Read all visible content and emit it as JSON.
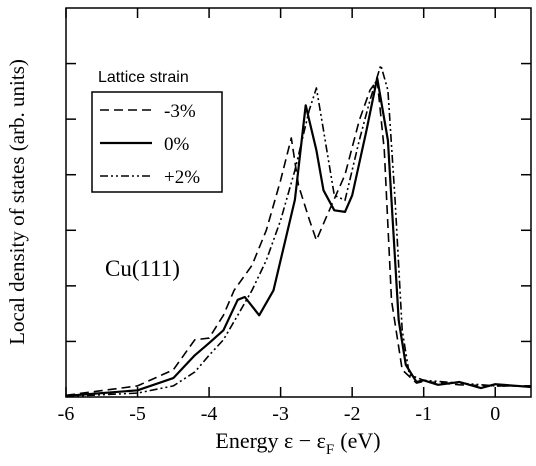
{
  "chart_data": {
    "type": "line",
    "ylabel": "Local density of states (arb. units)",
    "xlabel": {
      "main": "Energy  ε − ε",
      "sub": "F",
      "unit": "(eV)"
    },
    "legend_title": "Lattice strain",
    "annotation": "Cu(111)",
    "xlim": [
      -6,
      0.5
    ],
    "xticks": [
      -6,
      -5,
      -4,
      -3,
      -2,
      -1,
      0
    ],
    "ylim": [
      0,
      7
    ],
    "yticks": [
      1,
      2,
      3,
      4,
      5,
      6
    ],
    "series": [
      {
        "name": "-3%",
        "color": "#000",
        "dash": "9,5",
        "x": [
          -6,
          -5,
          -4.5,
          -4.2,
          -4.0,
          -3.8,
          -3.65,
          -3.4,
          -3.2,
          -3.0,
          -2.85,
          -2.75,
          -2.6,
          -2.5,
          -2.35,
          -2.1,
          -1.9,
          -1.75,
          -1.65,
          -1.55,
          -1.45,
          -1.3,
          -1.1,
          -1.0,
          -0.5,
          0,
          0.5
        ],
        "values": [
          0.03,
          0.2,
          0.49,
          1.03,
          1.06,
          1.47,
          1.92,
          2.37,
          3.0,
          3.9,
          4.66,
          3.81,
          3.2,
          2.82,
          3.27,
          4.0,
          4.98,
          5.52,
          5.7,
          4.44,
          1.74,
          0.49,
          0.25,
          0.28,
          0.22,
          0.2,
          0.2
        ]
      },
      {
        "name": "0%",
        "color": "#000",
        "dash": "none",
        "x": [
          -6,
          -5,
          -4.5,
          -4.2,
          -4.0,
          -3.8,
          -3.6,
          -3.5,
          -3.3,
          -3.1,
          -3.0,
          -2.8,
          -2.65,
          -2.5,
          -2.4,
          -2.25,
          -2.1,
          -2.0,
          -1.8,
          -1.65,
          -1.5,
          -1.35,
          -1.25,
          -1.1,
          -1.0,
          -0.8,
          -0.5,
          -0.2,
          0,
          0.5
        ],
        "values": [
          0.02,
          0.12,
          0.34,
          0.75,
          0.97,
          1.2,
          1.75,
          1.8,
          1.47,
          1.92,
          2.46,
          3.55,
          5.25,
          4.44,
          3.72,
          3.36,
          3.33,
          3.63,
          4.8,
          5.74,
          4.62,
          1.38,
          0.58,
          0.27,
          0.3,
          0.22,
          0.27,
          0.16,
          0.23,
          0.18
        ]
      },
      {
        "name": "+2%",
        "color": "#000",
        "dash": "8,3,2,3,2,3",
        "x": [
          -6,
          -5,
          -4.5,
          -4.2,
          -4.0,
          -3.8,
          -3.6,
          -3.4,
          -3.2,
          -3.0,
          -2.8,
          -2.6,
          -2.5,
          -2.4,
          -2.25,
          -2.1,
          -1.9,
          -1.75,
          -1.6,
          -1.5,
          -1.4,
          -1.3,
          -1.2,
          -1.0,
          -0.5,
          0,
          0.5
        ],
        "values": [
          0.01,
          0.07,
          0.2,
          0.45,
          0.75,
          1.03,
          1.47,
          1.92,
          2.46,
          3.18,
          4.08,
          5.16,
          5.56,
          4.8,
          3.63,
          3.54,
          4.62,
          5.34,
          5.97,
          5.52,
          3.54,
          1.2,
          0.4,
          0.3,
          0.25,
          0.2,
          0.2
        ]
      }
    ]
  }
}
